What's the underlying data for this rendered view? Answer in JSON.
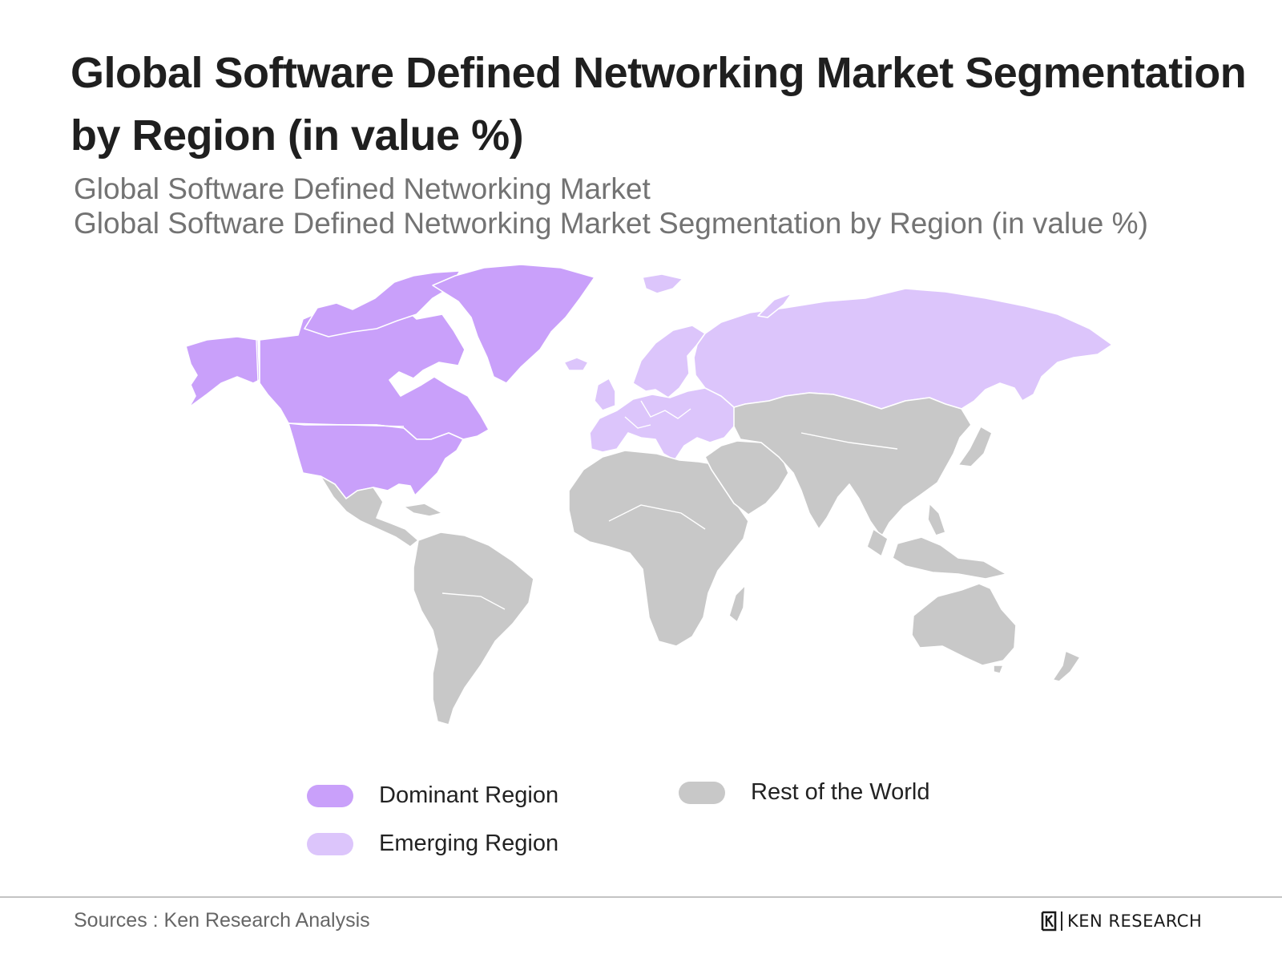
{
  "title": "Global Software Defined Networking Market Segmentation by Region (in value %)",
  "subtitle_1": "Global Software Defined Networking Market",
  "subtitle_2": "Global Software Defined Networking Market Segmentation by Region (in value %)",
  "colors": {
    "dominant": "#c9a0fa",
    "emerging": "#dcc5fb",
    "rest": "#c8c8c8"
  },
  "legend": {
    "dominant": "Dominant Region",
    "emerging": "Emerging Region",
    "rest": "Rest of the World"
  },
  "map_regions": {
    "dominant": [
      "North America",
      "Greenland"
    ],
    "emerging": [
      "Europe",
      "Russia"
    ],
    "rest": [
      "Latin America",
      "Africa",
      "Middle East",
      "Asia",
      "Oceania"
    ]
  },
  "source": "Sources : Ken Research Analysis",
  "brand": "KEN RESEARCH"
}
